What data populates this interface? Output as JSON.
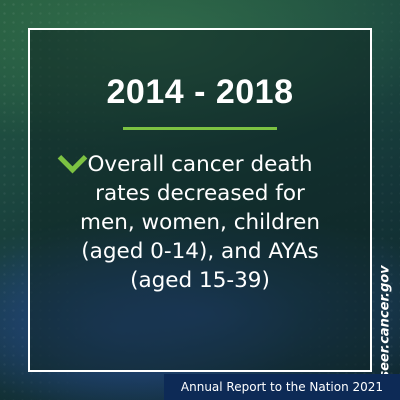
{
  "graphic": {
    "title": "2014 - 2018",
    "body_lines": [
      "Overall cancer death",
      "rates decreased for",
      "men, women, children",
      "(aged 0-14), and AYAs",
      "(aged 15-39)"
    ],
    "website": "seer.cancer.gov",
    "footer": "Annual Report to the Nation 2021"
  },
  "colors": {
    "accent_green": "#7cc242",
    "footer_bar": "#0d2a56",
    "text": "#ffffff"
  },
  "icons": {
    "decoration": "chevron-right-icon"
  }
}
